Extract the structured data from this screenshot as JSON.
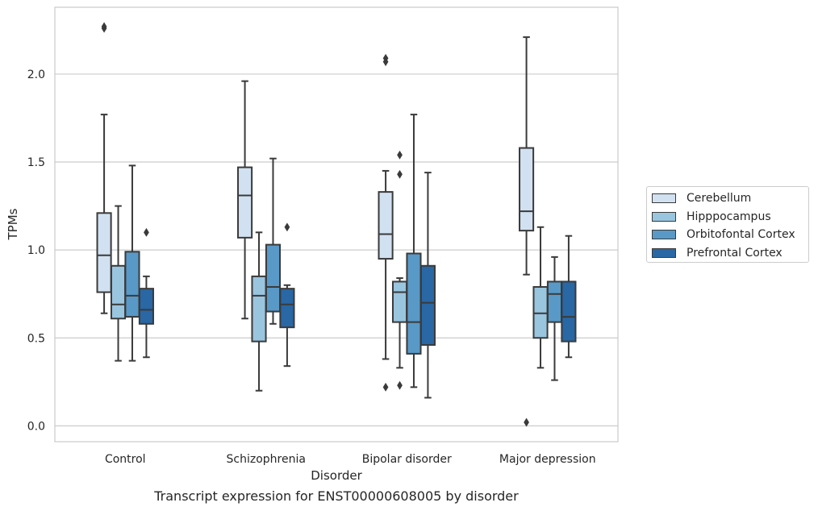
{
  "caption": "Transcript expression for ENST00000608005 by disorder",
  "chart_data": {
    "type": "box",
    "xlabel": "Disorder",
    "ylabel": "TPMs",
    "ylim": [
      -0.09,
      2.38
    ],
    "yticks": [
      0.0,
      0.5,
      1.0,
      1.5,
      2.0
    ],
    "ytick_labels": [
      "0.0",
      "0.5",
      "1.0",
      "1.5",
      "2.0"
    ],
    "grid": "horizontal",
    "legend_position": "right, outside plot",
    "categories": [
      "Control",
      "Schizophrenia",
      "Bipolar disorder",
      "Major depression"
    ],
    "series": [
      {
        "name": "Cerebellum",
        "color": "#d2e1f1",
        "boxes": [
          {
            "whislo": 0.64,
            "q1": 0.76,
            "med": 0.97,
            "q3": 1.21,
            "whishi": 1.77,
            "fliers": [
              2.27,
              2.26
            ]
          },
          {
            "whislo": 0.61,
            "q1": 1.07,
            "med": 1.31,
            "q3": 1.47,
            "whishi": 1.96,
            "fliers": []
          },
          {
            "whislo": 0.38,
            "q1": 0.95,
            "med": 1.09,
            "q3": 1.33,
            "whishi": 1.45,
            "fliers": [
              2.09,
              2.07,
              0.22
            ]
          },
          {
            "whislo": 0.86,
            "q1": 1.11,
            "med": 1.22,
            "q3": 1.58,
            "whishi": 2.21,
            "fliers": [
              0.02
            ]
          }
        ]
      },
      {
        "name": "Hipppocampus",
        "color": "#9ac5df",
        "boxes": [
          {
            "whislo": 0.37,
            "q1": 0.61,
            "med": 0.69,
            "q3": 0.91,
            "whishi": 1.25,
            "fliers": []
          },
          {
            "whislo": 0.2,
            "q1": 0.48,
            "med": 0.74,
            "q3": 0.85,
            "whishi": 1.1,
            "fliers": []
          },
          {
            "whislo": 0.33,
            "q1": 0.59,
            "med": 0.76,
            "q3": 0.82,
            "whishi": 0.84,
            "fliers": [
              1.54,
              1.43,
              0.23
            ]
          },
          {
            "whislo": 0.33,
            "q1": 0.5,
            "med": 0.64,
            "q3": 0.79,
            "whishi": 1.13,
            "fliers": []
          }
        ]
      },
      {
        "name": "Orbitofontal Cortex",
        "color": "#5899c7",
        "boxes": [
          {
            "whislo": 0.37,
            "q1": 0.62,
            "med": 0.74,
            "q3": 0.99,
            "whishi": 1.48,
            "fliers": []
          },
          {
            "whislo": 0.58,
            "q1": 0.65,
            "med": 0.79,
            "q3": 1.03,
            "whishi": 1.52,
            "fliers": []
          },
          {
            "whislo": 0.22,
            "q1": 0.41,
            "med": 0.59,
            "q3": 0.98,
            "whishi": 1.77,
            "fliers": []
          },
          {
            "whislo": 0.26,
            "q1": 0.59,
            "med": 0.75,
            "q3": 0.82,
            "whishi": 0.96,
            "fliers": []
          }
        ]
      },
      {
        "name": "Prefrontal Cortex",
        "color": "#2967a5",
        "boxes": [
          {
            "whislo": 0.39,
            "q1": 0.58,
            "med": 0.66,
            "q3": 0.78,
            "whishi": 0.85,
            "fliers": [
              1.1
            ]
          },
          {
            "whislo": 0.34,
            "q1": 0.56,
            "med": 0.69,
            "q3": 0.78,
            "whishi": 0.8,
            "fliers": [
              1.13
            ]
          },
          {
            "whislo": 0.16,
            "q1": 0.46,
            "med": 0.7,
            "q3": 0.91,
            "whishi": 1.44,
            "fliers": []
          },
          {
            "whislo": 0.39,
            "q1": 0.48,
            "med": 0.62,
            "q3": 0.82,
            "whishi": 1.08,
            "fliers": []
          }
        ]
      }
    ]
  }
}
